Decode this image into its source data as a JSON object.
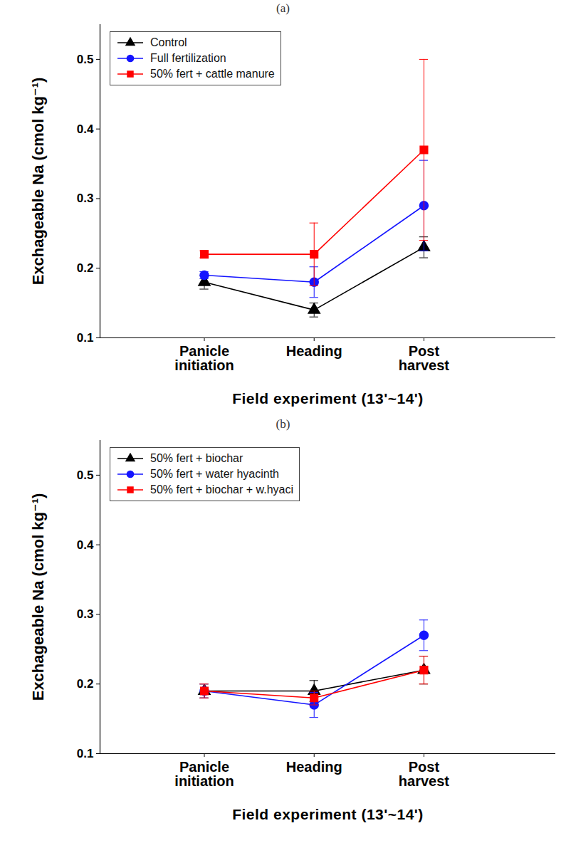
{
  "chart_data": [
    {
      "type": "line",
      "title": "(a)",
      "x_label": "Field experiment (13'~14')",
      "y_label": "Exchageable Na (cmol kg⁻¹)",
      "categories": [
        "Panicle initiation",
        "Heading",
        "Post harvest"
      ],
      "ylim": [
        0.1,
        0.55
      ],
      "yticks": [
        0.1,
        0.2,
        0.3,
        0.4,
        0.5
      ],
      "grid": false,
      "legend": "top-left",
      "series": [
        {
          "name": "Control",
          "color": "#000000",
          "marker": "triangle",
          "values": [
            0.18,
            0.14,
            0.23
          ],
          "errors": [
            0.01,
            0.01,
            0.015
          ]
        },
        {
          "name": "Full fertilization",
          "color": "#1414ff",
          "marker": "circle",
          "values": [
            0.19,
            0.18,
            0.29
          ],
          "errors": [
            0.005,
            0.022,
            0.065
          ]
        },
        {
          "name": "50% fert + cattle manure",
          "color": "#ff0000",
          "marker": "square",
          "values": [
            0.22,
            0.22,
            0.37
          ],
          "errors": [
            0.005,
            0.045,
            0.13
          ]
        }
      ]
    },
    {
      "type": "line",
      "title": "(b)",
      "x_label": "Field experiment (13'~14')",
      "y_label": "Exchageable Na (cmol kg⁻¹)",
      "categories": [
        "Panicle initiation",
        "Heading",
        "Post harvest"
      ],
      "ylim": [
        0.1,
        0.55
      ],
      "yticks": [
        0.1,
        0.2,
        0.3,
        0.4,
        0.5
      ],
      "grid": false,
      "legend": "top-left",
      "series": [
        {
          "name": "50% fert + biochar",
          "color": "#000000",
          "marker": "triangle",
          "values": [
            0.19,
            0.19,
            0.22
          ],
          "errors": [
            0.01,
            0.015,
            0.02
          ]
        },
        {
          "name": "50% fert + water hyacinth",
          "color": "#1414ff",
          "marker": "circle",
          "values": [
            0.19,
            0.17,
            0.27
          ],
          "errors": [
            0.01,
            0.018,
            0.022
          ]
        },
        {
          "name": "50% fert + biochar + w.hyaci",
          "color": "#ff0000",
          "marker": "square",
          "values": [
            0.19,
            0.18,
            0.22
          ],
          "errors": [
            0.01,
            0.01,
            0.02
          ]
        }
      ]
    }
  ]
}
